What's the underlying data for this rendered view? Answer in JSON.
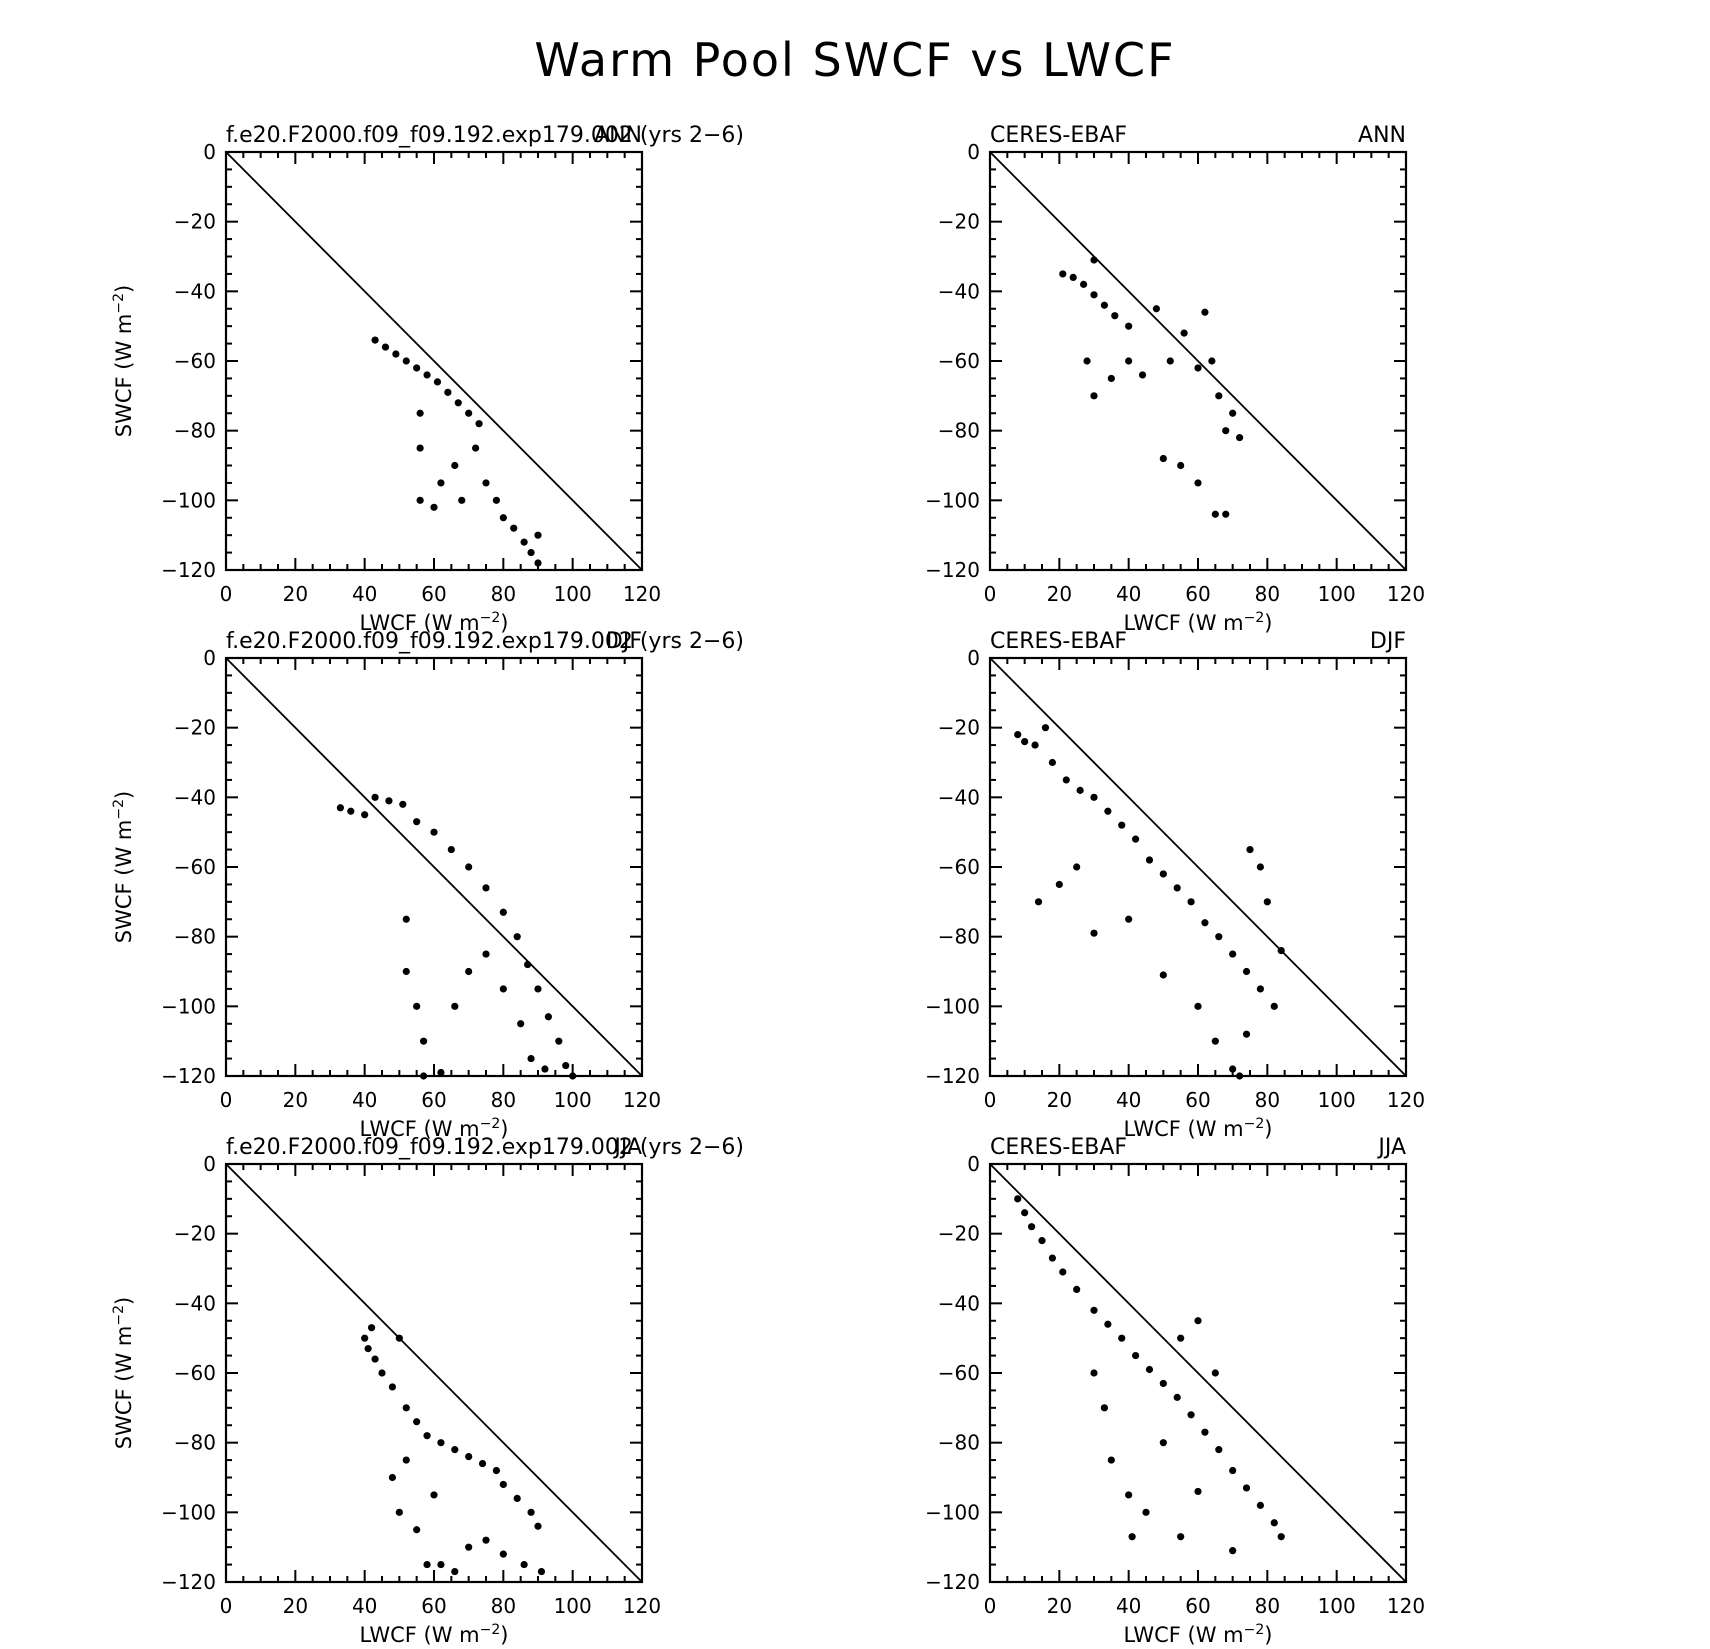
{
  "title": "Warm Pool SWCF vs LWCF",
  "axes": {
    "xlabel": "LWCF (W m",
    "ylabel": "SWCF (W m",
    "unit_exponent": "−2",
    "xlim": [
      0,
      120
    ],
    "ylim": [
      -120,
      0
    ],
    "xticks": [
      0,
      20,
      40,
      60,
      80,
      100,
      120
    ],
    "yticks": [
      0,
      -20,
      -40,
      -60,
      -80,
      -100,
      -120
    ],
    "xtick_labels": [
      "0",
      "20",
      "40",
      "60",
      "80",
      "100",
      "120"
    ],
    "ytick_labels": [
      "0",
      "−20",
      "−40",
      "−60",
      "−80",
      "−100",
      "−120"
    ],
    "reference_line": "1:1 line from (0,0) to (120,-120)"
  },
  "chart_data": [
    {
      "type": "scatter",
      "source": "f.e20.F2000.f09_f09.192.exp179.002 (yrs 2−6)",
      "season": "ANN",
      "xlim": [
        0,
        120
      ],
      "ylim": [
        -120,
        0
      ],
      "cloud": {
        "approx_x_range": [
          43,
          91
        ],
        "approx_y_range": [
          -118,
          -54
        ]
      },
      "points": [
        [
          43,
          -54
        ],
        [
          46,
          -56
        ],
        [
          49,
          -58
        ],
        [
          52,
          -60
        ],
        [
          55,
          -62
        ],
        [
          58,
          -64
        ],
        [
          61,
          -66
        ],
        [
          64,
          -69
        ],
        [
          67,
          -72
        ],
        [
          70,
          -75
        ],
        [
          73,
          -78
        ],
        [
          56,
          -75
        ],
        [
          56,
          -85
        ],
        [
          56,
          -100
        ],
        [
          60,
          -102
        ],
        [
          62,
          -95
        ],
        [
          66,
          -90
        ],
        [
          68,
          -100
        ],
        [
          72,
          -85
        ],
        [
          75,
          -95
        ],
        [
          78,
          -100
        ],
        [
          80,
          -105
        ],
        [
          83,
          -108
        ],
        [
          86,
          -112
        ],
        [
          88,
          -115
        ],
        [
          90,
          -110
        ],
        [
          90,
          -118
        ]
      ]
    },
    {
      "type": "scatter",
      "source": "CERES-EBAF",
      "season": "ANN",
      "xlim": [
        0,
        120
      ],
      "ylim": [
        -120,
        0
      ],
      "cloud": {
        "approx_x_range": [
          20,
          72
        ],
        "approx_y_range": [
          -104,
          -31
        ]
      },
      "points": [
        [
          21,
          -35
        ],
        [
          24,
          -36
        ],
        [
          27,
          -38
        ],
        [
          30,
          -31
        ],
        [
          30,
          -41
        ],
        [
          33,
          -44
        ],
        [
          36,
          -47
        ],
        [
          40,
          -50
        ],
        [
          28,
          -60
        ],
        [
          30,
          -70
        ],
        [
          35,
          -65
        ],
        [
          40,
          -60
        ],
        [
          44,
          -64
        ],
        [
          48,
          -45
        ],
        [
          52,
          -60
        ],
        [
          56,
          -52
        ],
        [
          60,
          -62
        ],
        [
          62,
          -46
        ],
        [
          64,
          -60
        ],
        [
          66,
          -70
        ],
        [
          68,
          -80
        ],
        [
          70,
          -75
        ],
        [
          72,
          -82
        ],
        [
          55,
          -90
        ],
        [
          60,
          -95
        ],
        [
          65,
          -104
        ],
        [
          68,
          -104
        ],
        [
          50,
          -88
        ]
      ]
    },
    {
      "type": "scatter",
      "source": "f.e20.F2000.f09_f09.192.exp179.002 (yrs 2−6)",
      "season": "DJF",
      "xlim": [
        0,
        120
      ],
      "ylim": [
        -120,
        0
      ],
      "cloud": {
        "approx_x_range": [
          33,
          100
        ],
        "approx_y_range": [
          -120,
          -40
        ]
      },
      "points": [
        [
          33,
          -43
        ],
        [
          36,
          -44
        ],
        [
          40,
          -45
        ],
        [
          43,
          -40
        ],
        [
          47,
          -41
        ],
        [
          51,
          -42
        ],
        [
          55,
          -47
        ],
        [
          60,
          -50
        ],
        [
          65,
          -55
        ],
        [
          70,
          -60
        ],
        [
          75,
          -66
        ],
        [
          80,
          -73
        ],
        [
          84,
          -80
        ],
        [
          87,
          -88
        ],
        [
          90,
          -95
        ],
        [
          93,
          -103
        ],
        [
          96,
          -110
        ],
        [
          98,
          -117
        ],
        [
          100,
          -120
        ],
        [
          52,
          -75
        ],
        [
          52,
          -90
        ],
        [
          55,
          -100
        ],
        [
          57,
          -110
        ],
        [
          57,
          -120
        ],
        [
          62,
          -119
        ],
        [
          66,
          -100
        ],
        [
          70,
          -90
        ],
        [
          75,
          -85
        ],
        [
          80,
          -95
        ],
        [
          85,
          -105
        ],
        [
          88,
          -115
        ],
        [
          92,
          -118
        ]
      ]
    },
    {
      "type": "scatter",
      "source": "CERES-EBAF",
      "season": "DJF",
      "xlim": [
        0,
        120
      ],
      "ylim": [
        -120,
        0
      ],
      "cloud": {
        "approx_x_range": [
          8,
          84
        ],
        "approx_y_range": [
          -120,
          -20
        ]
      },
      "points": [
        [
          8,
          -22
        ],
        [
          10,
          -24
        ],
        [
          13,
          -25
        ],
        [
          16,
          -20
        ],
        [
          18,
          -30
        ],
        [
          22,
          -35
        ],
        [
          26,
          -38
        ],
        [
          30,
          -40
        ],
        [
          34,
          -44
        ],
        [
          38,
          -48
        ],
        [
          42,
          -52
        ],
        [
          46,
          -58
        ],
        [
          50,
          -62
        ],
        [
          54,
          -66
        ],
        [
          58,
          -70
        ],
        [
          62,
          -76
        ],
        [
          66,
          -80
        ],
        [
          70,
          -85
        ],
        [
          74,
          -90
        ],
        [
          78,
          -95
        ],
        [
          82,
          -100
        ],
        [
          84,
          -84
        ],
        [
          14,
          -70
        ],
        [
          20,
          -65
        ],
        [
          25,
          -60
        ],
        [
          30,
          -79
        ],
        [
          40,
          -75
        ],
        [
          50,
          -91
        ],
        [
          60,
          -100
        ],
        [
          65,
          -110
        ],
        [
          70,
          -118
        ],
        [
          72,
          -120
        ],
        [
          74,
          -108
        ],
        [
          80,
          -70
        ],
        [
          78,
          -60
        ],
        [
          75,
          -55
        ]
      ]
    },
    {
      "type": "scatter",
      "source": "f.e20.F2000.f09_f09.192.exp179.002 (yrs 2−6)",
      "season": "JJA",
      "xlim": [
        0,
        120
      ],
      "ylim": [
        -120,
        0
      ],
      "cloud": {
        "approx_x_range": [
          40,
          92
        ],
        "approx_y_range": [
          -118,
          -47
        ]
      },
      "points": [
        [
          40,
          -50
        ],
        [
          41,
          -53
        ],
        [
          42,
          -47
        ],
        [
          43,
          -56
        ],
        [
          45,
          -60
        ],
        [
          48,
          -64
        ],
        [
          50,
          -50
        ],
        [
          52,
          -70
        ],
        [
          55,
          -74
        ],
        [
          58,
          -78
        ],
        [
          62,
          -80
        ],
        [
          66,
          -82
        ],
        [
          70,
          -84
        ],
        [
          74,
          -86
        ],
        [
          78,
          -88
        ],
        [
          80,
          -92
        ],
        [
          84,
          -96
        ],
        [
          88,
          -100
        ],
        [
          90,
          -104
        ],
        [
          91,
          -117
        ],
        [
          48,
          -90
        ],
        [
          50,
          -100
        ],
        [
          55,
          -105
        ],
        [
          58,
          -115
        ],
        [
          62,
          -115
        ],
        [
          66,
          -117
        ],
        [
          70,
          -110
        ],
        [
          75,
          -108
        ],
        [
          80,
          -112
        ],
        [
          86,
          -115
        ],
        [
          52,
          -85
        ],
        [
          60,
          -95
        ]
      ]
    },
    {
      "type": "scatter",
      "source": "CERES-EBAF",
      "season": "JJA",
      "xlim": [
        0,
        120
      ],
      "ylim": [
        -120,
        0
      ],
      "cloud": {
        "approx_x_range": [
          8,
          84
        ],
        "approx_y_range": [
          -111,
          -10
        ]
      },
      "points": [
        [
          8,
          -10
        ],
        [
          10,
          -14
        ],
        [
          12,
          -18
        ],
        [
          15,
          -22
        ],
        [
          18,
          -27
        ],
        [
          21,
          -31
        ],
        [
          25,
          -36
        ],
        [
          30,
          -42
        ],
        [
          34,
          -46
        ],
        [
          38,
          -50
        ],
        [
          42,
          -55
        ],
        [
          46,
          -59
        ],
        [
          50,
          -63
        ],
        [
          54,
          -67
        ],
        [
          58,
          -72
        ],
        [
          62,
          -77
        ],
        [
          66,
          -82
        ],
        [
          70,
          -88
        ],
        [
          74,
          -93
        ],
        [
          78,
          -98
        ],
        [
          82,
          -103
        ],
        [
          84,
          -107
        ],
        [
          30,
          -60
        ],
        [
          33,
          -70
        ],
        [
          35,
          -85
        ],
        [
          40,
          -95
        ],
        [
          41,
          -107
        ],
        [
          45,
          -100
        ],
        [
          55,
          -107
        ],
        [
          60,
          -94
        ],
        [
          70,
          -111
        ],
        [
          60,
          -45
        ],
        [
          55,
          -50
        ],
        [
          65,
          -60
        ],
        [
          50,
          -80
        ]
      ]
    }
  ]
}
